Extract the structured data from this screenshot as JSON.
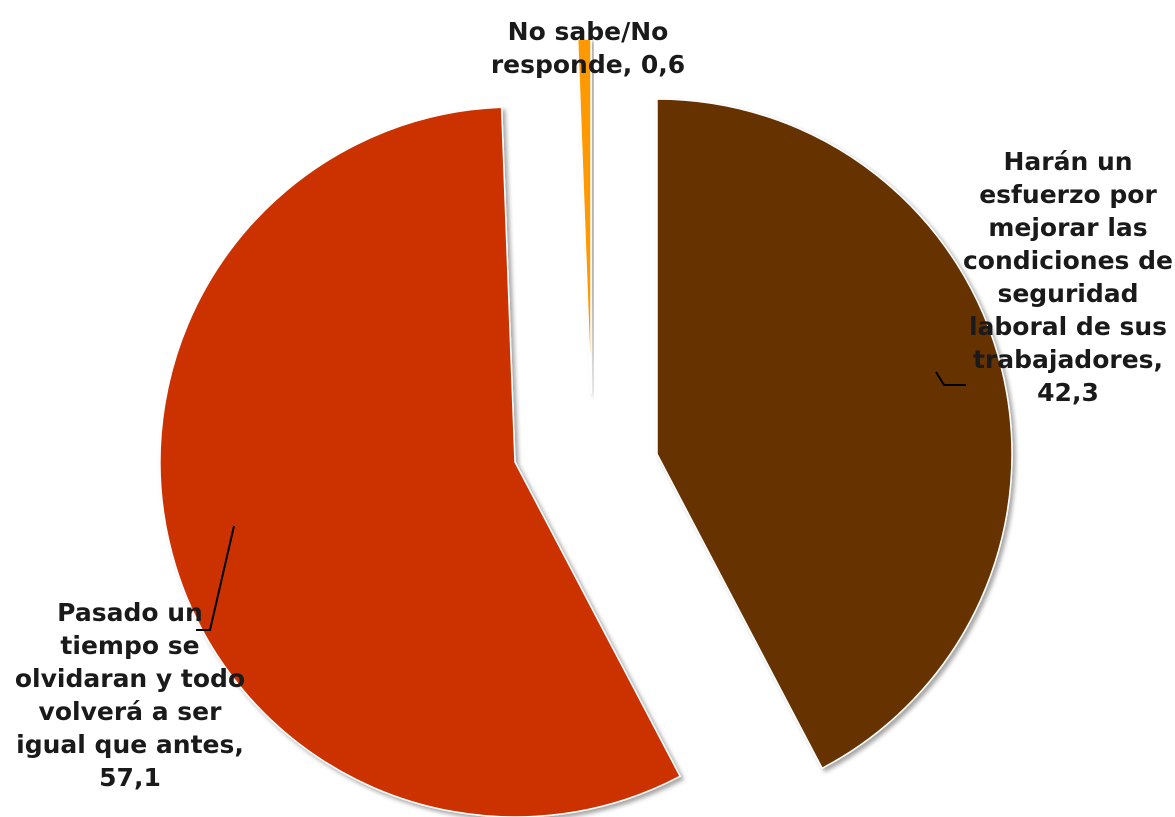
{
  "chart_data": {
    "type": "pie",
    "title": "",
    "unit": "%",
    "slices": [
      {
        "label_lines": [
          "Harán un",
          "esfuerzo por",
          "mejorar las",
          "condiciones de",
          "seguridad",
          "laboral de sus",
          "trabajadores,",
          "42,3"
        ],
        "value": 42.3,
        "color": "#663300"
      },
      {
        "label_lines": [
          "Pasado un",
          "tiempo se",
          "olvidaran y todo",
          "volverá a ser",
          "igual que antes,",
          "57,1"
        ],
        "value": 57.1,
        "color": "#cc3300"
      },
      {
        "label_lines": [
          "No sabe/No",
          "responde, 0,6"
        ],
        "value": 0.6,
        "color": "#ff9900"
      }
    ]
  }
}
